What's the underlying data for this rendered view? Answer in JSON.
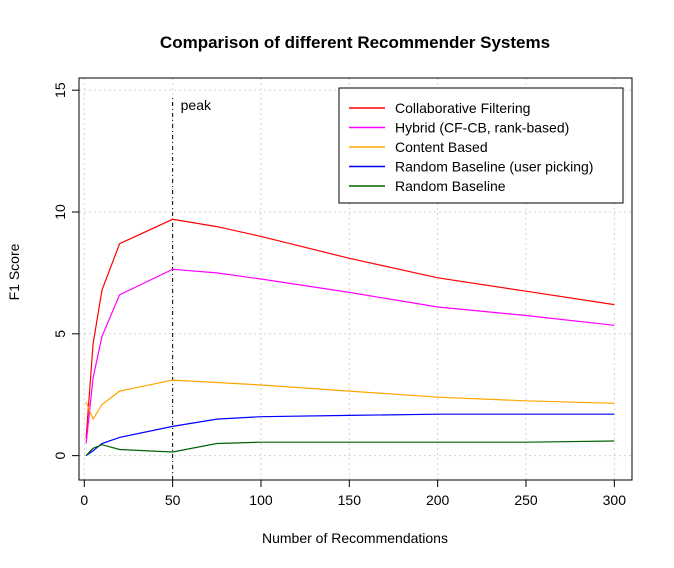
{
  "chart_data": {
    "type": "line",
    "title": "Comparison of different Recommender Systems",
    "xlabel": "Number of Recommendations",
    "ylabel": "F1 Score",
    "xlim": [
      -3,
      310
    ],
    "ylim": [
      -1,
      15.5
    ],
    "x_ticks": [
      0,
      50,
      100,
      150,
      200,
      250,
      300
    ],
    "y_ticks": [
      0,
      5,
      10,
      15
    ],
    "grid": true,
    "legend_position": "top-right",
    "annotation": {
      "label": "peak",
      "x": 50
    },
    "series": [
      {
        "name": "Collaborative Filtering",
        "color": "#ff0000",
        "x": [
          1,
          5,
          10,
          20,
          50,
          75,
          100,
          150,
          200,
          250,
          300
        ],
        "y": [
          0.7,
          4.6,
          6.8,
          8.7,
          9.7,
          9.4,
          9.0,
          8.1,
          7.3,
          6.75,
          6.2
        ]
      },
      {
        "name": "Hybrid (CF-CB, rank-based)",
        "color": "#ff00ff",
        "x": [
          1,
          5,
          10,
          20,
          50,
          75,
          100,
          150,
          200,
          250,
          300
        ],
        "y": [
          0.5,
          3.2,
          4.9,
          6.6,
          7.65,
          7.5,
          7.25,
          6.7,
          6.1,
          5.75,
          5.35
        ]
      },
      {
        "name": "Content Based",
        "color": "#ffa500",
        "x": [
          1,
          5,
          10,
          20,
          50,
          75,
          100,
          150,
          200,
          250,
          300
        ],
        "y": [
          2.2,
          1.5,
          2.1,
          2.65,
          3.1,
          3.0,
          2.9,
          2.65,
          2.4,
          2.25,
          2.15
        ]
      },
      {
        "name": "Random Baseline (user picking)",
        "color": "#0000ff",
        "x": [
          1,
          5,
          10,
          20,
          50,
          75,
          100,
          150,
          200,
          250,
          300
        ],
        "y": [
          0.0,
          0.2,
          0.5,
          0.75,
          1.2,
          1.5,
          1.6,
          1.65,
          1.7,
          1.7,
          1.7
        ]
      },
      {
        "name": "Random Baseline",
        "color": "#006400",
        "x": [
          1,
          5,
          10,
          20,
          50,
          75,
          100,
          150,
          200,
          250,
          300
        ],
        "y": [
          0.0,
          0.3,
          0.45,
          0.25,
          0.15,
          0.5,
          0.55,
          0.55,
          0.55,
          0.55,
          0.6
        ]
      }
    ]
  }
}
